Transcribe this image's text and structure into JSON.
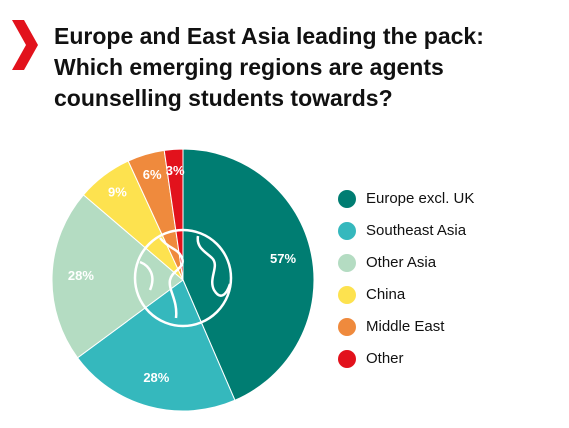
{
  "chart_data": {
    "type": "pie",
    "title": "Europe and East Asia leading the pack: Which emerging regions are agents counselling students towards?",
    "categories": [
      "Europe excl. UK",
      "Southeast Asia",
      "Other Asia",
      "China",
      "Middle East",
      "Other"
    ],
    "values": [
      57,
      28,
      28,
      9,
      6,
      3
    ],
    "value_labels": [
      "57%",
      "28%",
      "28%",
      "9%",
      "6%",
      "3%"
    ],
    "colors": [
      "#007d72",
      "#35b8bd",
      "#b4dcc2",
      "#fde24f",
      "#ef8a3d",
      "#e2121c"
    ],
    "legend": "right"
  }
}
